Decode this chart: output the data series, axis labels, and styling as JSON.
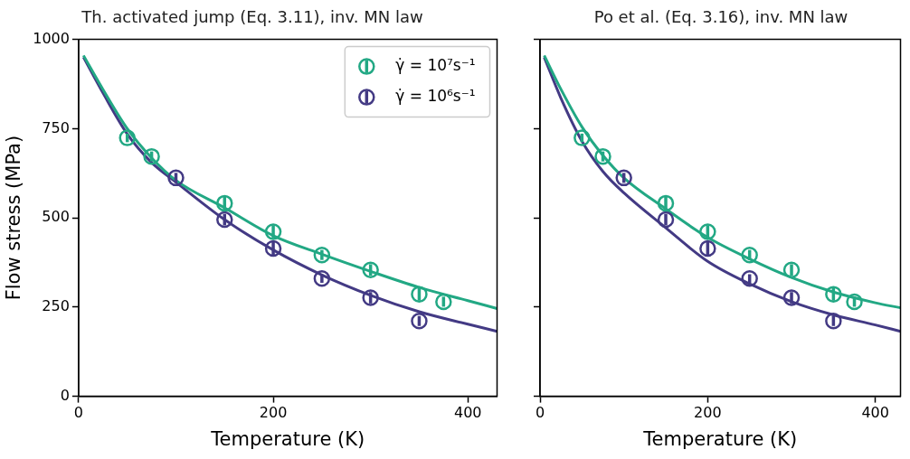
{
  "chart_data": [
    {
      "type": "scatter",
      "title": "Th. activated jump (Eq. 3.11), inv. MN law",
      "xlabel": "Temperature (K)",
      "ylabel": "Flow stress (MPa)",
      "xlim": [
        0,
        430
      ],
      "xticks": [
        0,
        200,
        400
      ],
      "ylim": [
        0,
        1000
      ],
      "yticks": [
        0,
        250,
        500,
        750,
        1000
      ],
      "legend": "top right",
      "series": [
        {
          "name": "γ̇ = 10⁷s⁻¹",
          "color": "#22a884",
          "type": "scatter",
          "x": [
            50,
            75,
            150,
            200,
            250,
            300,
            350,
            375
          ],
          "values": [
            724,
            672,
            541,
            461,
            396,
            354,
            286,
            265
          ],
          "errors": [
            12,
            14,
            18,
            18,
            14,
            16,
            18,
            14
          ]
        },
        {
          "name": "γ̇ = 10⁶s⁻¹",
          "color": "#433a84",
          "type": "scatter",
          "x": [
            100,
            150,
            200,
            250,
            300,
            350
          ],
          "values": [
            612,
            495,
            414,
            330,
            276,
            211
          ],
          "errors": [
            14,
            16,
            18,
            12,
            16,
            14
          ]
        },
        {
          "color": "#22a884",
          "type": "line",
          "x": [
            5,
            25,
            50,
            75,
            100,
            150,
            200,
            250,
            300,
            350,
            400,
            430
          ],
          "values": [
            955,
            860,
            750,
            668,
            605,
            528,
            450,
            398,
            350,
            305,
            268,
            246
          ]
        },
        {
          "color": "#433a84",
          "type": "line",
          "x": [
            5,
            25,
            50,
            75,
            100,
            150,
            200,
            250,
            300,
            350,
            400,
            430
          ],
          "values": [
            950,
            850,
            735,
            655,
            600,
            495,
            410,
            340,
            283,
            237,
            202,
            182
          ]
        }
      ]
    },
    {
      "type": "scatter",
      "title": "Po et al. (Eq. 3.16), inv. MN law",
      "xlabel": "Temperature (K)",
      "xlim": [
        0,
        430
      ],
      "xticks": [
        0,
        200,
        400
      ],
      "ylim": [
        0,
        1000
      ],
      "yticks": [
        0,
        250,
        500,
        750,
        1000
      ],
      "tick_labels": "x",
      "series": [
        {
          "color": "#22a884",
          "type": "scatter",
          "x": [
            50,
            75,
            150,
            200,
            250,
            300,
            350,
            375
          ],
          "values": [
            724,
            672,
            541,
            461,
            396,
            354,
            286,
            265
          ],
          "errors": [
            12,
            14,
            18,
            18,
            14,
            16,
            18,
            14
          ]
        },
        {
          "color": "#433a84",
          "type": "scatter",
          "x": [
            100,
            150,
            200,
            250,
            300,
            350
          ],
          "values": [
            612,
            495,
            414,
            330,
            276,
            211
          ],
          "errors": [
            14,
            16,
            18,
            12,
            16,
            14
          ]
        },
        {
          "color": "#22a884",
          "type": "line",
          "x": [
            5,
            25,
            50,
            75,
            100,
            150,
            200,
            250,
            300,
            350,
            400,
            430
          ],
          "values": [
            955,
            860,
            755,
            675,
            612,
            525,
            445,
            385,
            333,
            292,
            262,
            248
          ]
        },
        {
          "color": "#433a84",
          "type": "line",
          "x": [
            5,
            25,
            50,
            75,
            100,
            150,
            200,
            250,
            300,
            350,
            400,
            430
          ],
          "values": [
            950,
            835,
            715,
            630,
            570,
            472,
            378,
            315,
            265,
            228,
            200,
            182
          ]
        }
      ]
    }
  ]
}
